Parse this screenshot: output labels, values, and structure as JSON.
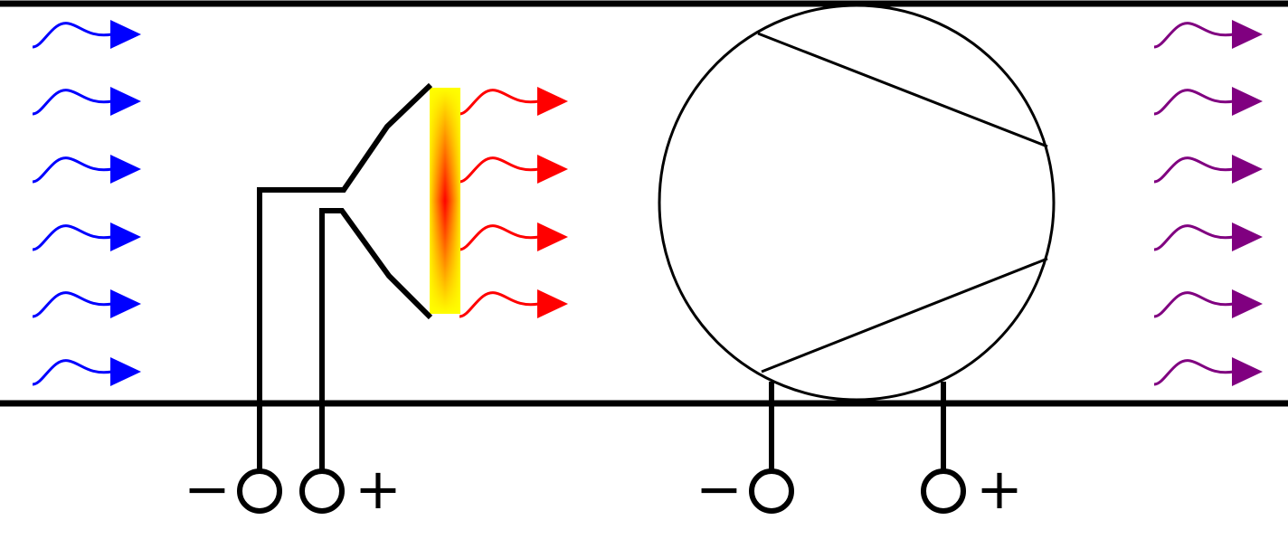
{
  "colors": {
    "inflow": "#0000ff",
    "heated": "#ff0000",
    "outflow": "#800080",
    "line": "#000000",
    "heater_outer": "#ffff00",
    "heater_inner": "#ff0000"
  },
  "heater_terminals": {
    "minus": "−",
    "plus": "+"
  },
  "fan_terminals": {
    "minus": "−",
    "plus": "+"
  }
}
